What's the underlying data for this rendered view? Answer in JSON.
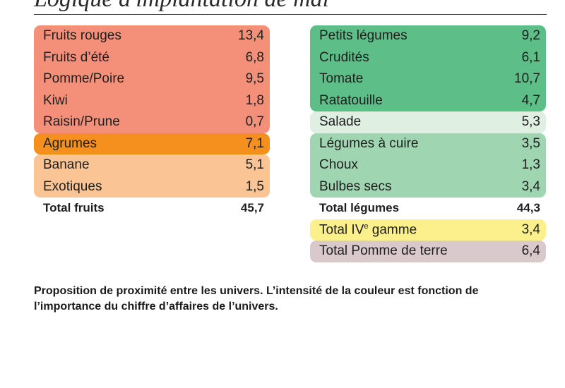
{
  "title": "Logique d'implantation de mai",
  "colors": {
    "fruits_red": "#f4907a",
    "agrumes": "#f5901e",
    "fruits_light": "#fbc494",
    "veg_dark": "#5dbe88",
    "salade": "#dff0e2",
    "veg_mid": "#9fd6b1",
    "ive_gamme": "#fbf08c",
    "pomme_de_terre": "#d9c8cc"
  },
  "fruits": {
    "group_red": [
      {
        "label": "Fruits rouges",
        "value": "13,4"
      },
      {
        "label": "Fruits d’été",
        "value": "6,8"
      },
      {
        "label": "Pomme/Poire",
        "value": "9,5"
      },
      {
        "label": "Kiwi",
        "value": "1,8"
      },
      {
        "label": "Raisin/Prune",
        "value": "0,7"
      }
    ],
    "agrumes": {
      "label": "Agrumes",
      "value": "7,1"
    },
    "group_light": [
      {
        "label": "Banane",
        "value": "5,1"
      },
      {
        "label": "Exotiques",
        "value": "1,5"
      }
    ],
    "total": {
      "label": "Total fruits",
      "value": "45,7"
    }
  },
  "legumes": {
    "group_dark": [
      {
        "label": "Petits légumes",
        "value": "9,2"
      },
      {
        "label": "Crudités",
        "value": "6,1"
      },
      {
        "label": "Tomate",
        "value": "10,7"
      },
      {
        "label": "Ratatouille",
        "value": "4,7"
      }
    ],
    "salade": {
      "label": "Salade",
      "value": "5,3"
    },
    "group_mid": [
      {
        "label": "Légumes à cuire",
        "value": "3,5"
      },
      {
        "label": "Choux",
        "value": "1,3"
      },
      {
        "label": "Bulbes secs",
        "value": "3,4"
      }
    ],
    "total": {
      "label": "Total légumes",
      "value": "44,3"
    },
    "ive_gamme": {
      "label_prefix": "Total IV",
      "label_sup": "e",
      "label_suffix": " gamme",
      "value": "3,4"
    },
    "pomme_de_terre": {
      "label": "Total Pomme de terre",
      "value": "6,4"
    }
  },
  "caption": "Proposition de proximité entre les univers. L’intensité de la couleur est fonction de l’importance du chiffre d’affaires de l’univers."
}
